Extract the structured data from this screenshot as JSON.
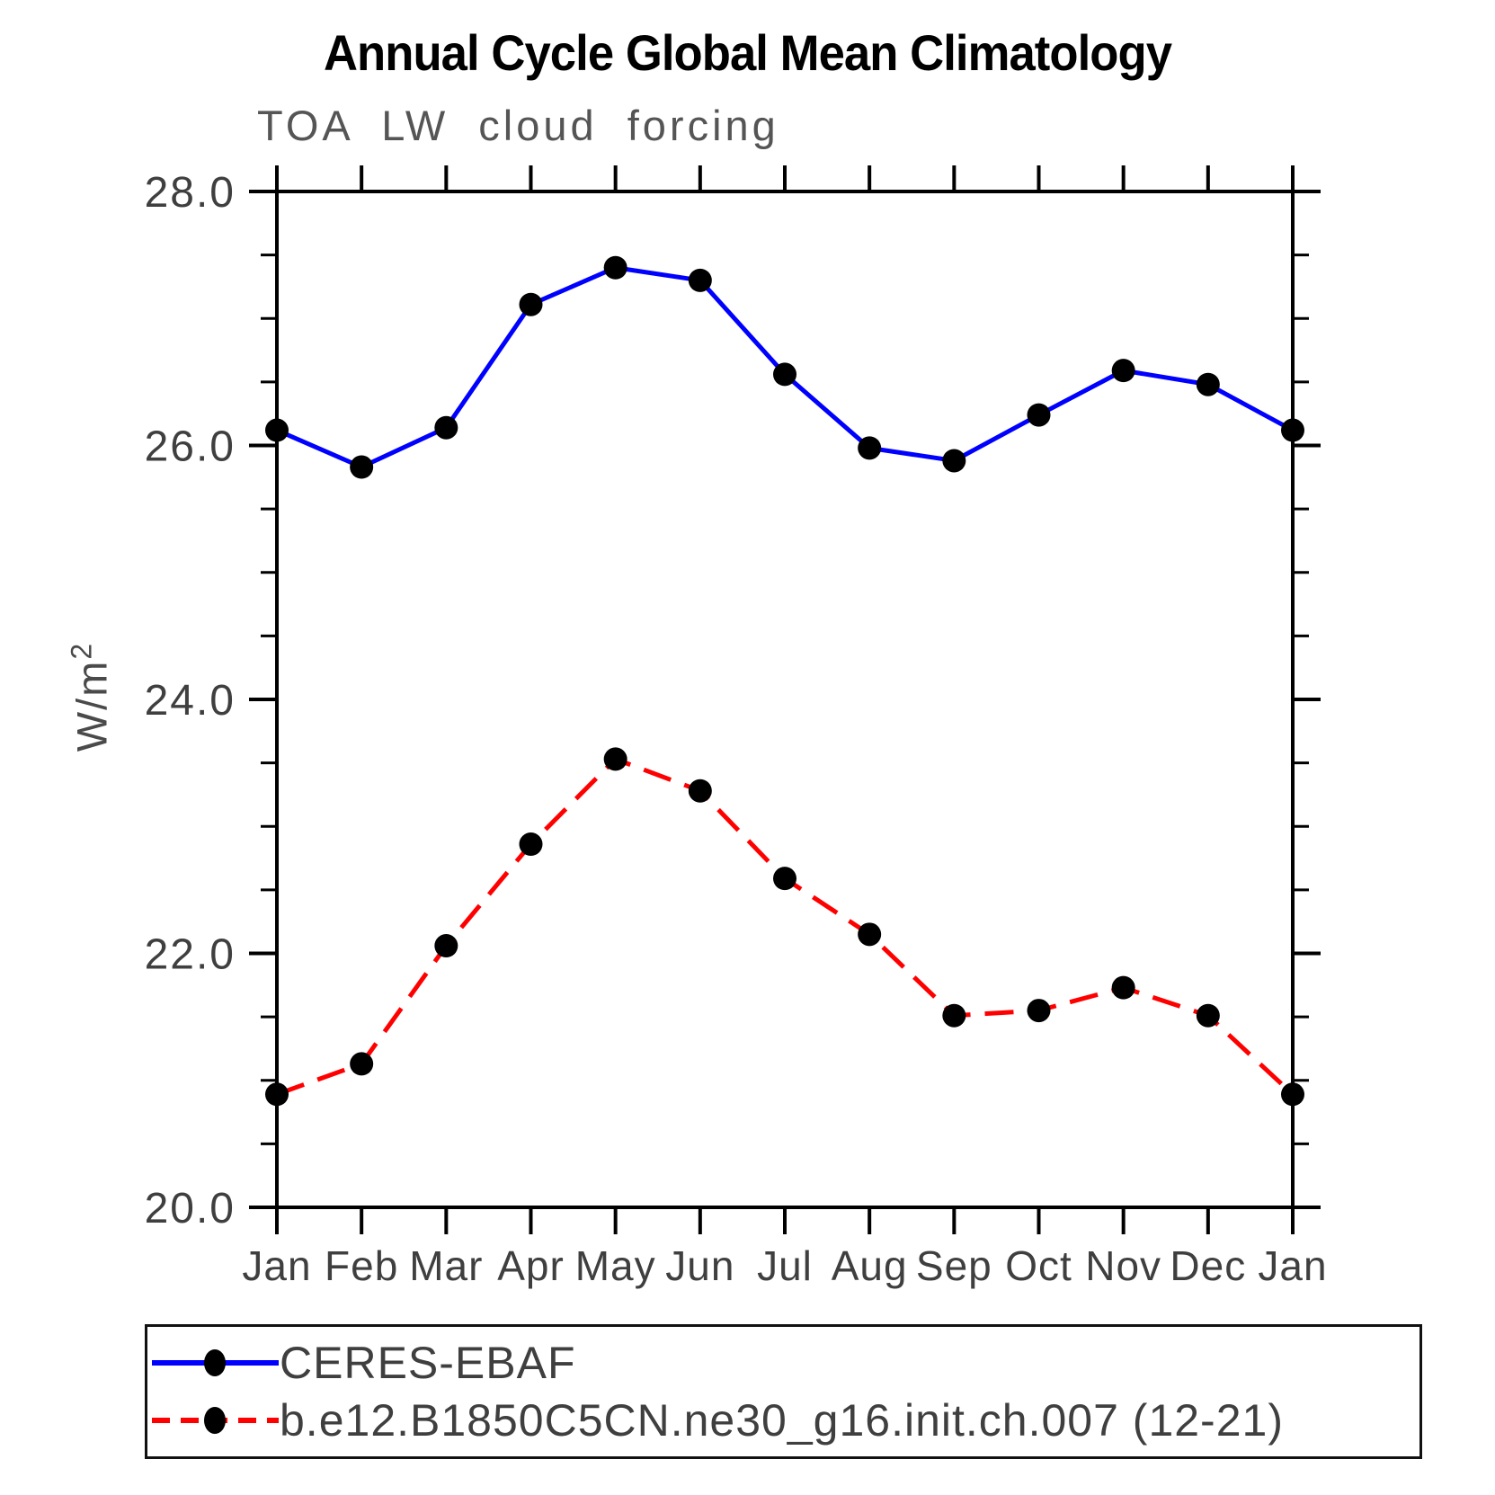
{
  "header": {
    "title": "Annual Cycle Global Mean Climatology",
    "subtitle": "TOA LW cloud forcing"
  },
  "chart_data": {
    "type": "line",
    "title": "Annual Cycle Global Mean Climatology",
    "subtitle": "TOA LW cloud forcing",
    "ylabel": "W/m²",
    "ylabel_base": "W/m",
    "ylabel_exponent": "2",
    "x_tick_labels": [
      "Jan",
      "Feb",
      "Mar",
      "Apr",
      "May",
      "Jun",
      "Jul",
      "Aug",
      "Sep",
      "Oct",
      "Nov",
      "Dec",
      "Jan"
    ],
    "ylim": [
      20.0,
      28.0
    ],
    "y_major_ticks": [
      20.0,
      22.0,
      24.0,
      26.0,
      28.0
    ],
    "y_tick_labels": [
      "20.0",
      "22.0",
      "24.0",
      "26.0",
      "28.0"
    ],
    "y_minor_step": 0.5,
    "grid": false,
    "legend_position": "below-left",
    "series": [
      {
        "name": "CERES-EBAF",
        "color": "#0000ff",
        "line_style": "solid",
        "marker": "circle",
        "marker_color": "#000000",
        "values": [
          26.12,
          25.83,
          26.14,
          27.11,
          27.4,
          27.3,
          26.56,
          25.98,
          25.88,
          26.24,
          26.59,
          26.48,
          26.12
        ]
      },
      {
        "name": "b.e12.B1850C5CN.ne30_g16.init.ch.007 (12-21)",
        "color": "#ff0000",
        "line_style": "dashed",
        "marker": "circle",
        "marker_color": "#000000",
        "values": [
          20.89,
          21.13,
          22.06,
          22.86,
          23.53,
          23.28,
          22.59,
          22.15,
          21.51,
          21.55,
          21.73,
          21.51,
          20.89
        ]
      }
    ]
  }
}
